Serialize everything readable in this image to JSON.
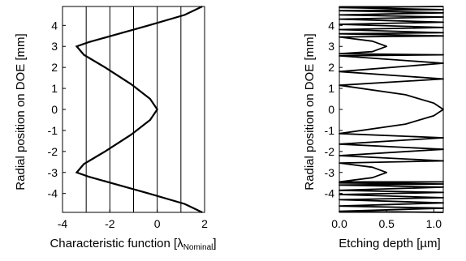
{
  "chart_data": [
    {
      "type": "line",
      "title": "",
      "xlabel": "Characteristic function",
      "xlabel_unit": "λ",
      "xlabel_unit_sub": "Nominal",
      "ylabel": "Radial position on DOE  [mm]",
      "xlim": [
        -4,
        2
      ],
      "ylim": [
        -4.9,
        4.9
      ],
      "xticks": [
        -4,
        -2,
        0,
        2
      ],
      "xtick_labels": [
        "-4",
        "-2",
        "0",
        "2"
      ],
      "yticks": [
        -4,
        -3,
        -2,
        -1,
        0,
        1,
        2,
        3,
        4
      ],
      "ytick_labels": [
        "-4",
        "-3",
        "-2",
        "-1",
        "0",
        "1",
        "2",
        "3",
        "4"
      ],
      "vertical_lines": [
        -3,
        -2,
        -1,
        0,
        1
      ],
      "series": [
        {
          "x": [
            1.9,
            1.16,
            -0.36,
            -1.95,
            -2.9,
            -3.4,
            -3.1,
            -2.2,
            -1.1,
            -0.3,
            0.0,
            -0.3,
            -1.1,
            -2.2,
            -3.1,
            -3.4,
            -2.9,
            -1.95,
            -0.36,
            1.16,
            1.9
          ],
          "y": [
            -4.9,
            -4.5,
            -4.0,
            -3.5,
            -3.2,
            -3.0,
            -2.6,
            -2.0,
            -1.2,
            -0.5,
            0.0,
            0.5,
            1.2,
            2.0,
            2.6,
            3.0,
            3.2,
            3.5,
            4.0,
            4.5,
            4.9
          ]
        }
      ]
    },
    {
      "type": "line",
      "title": "",
      "xlabel": "Etching depth  [µm]",
      "ylabel": "Radial position on DOE  [mm]",
      "xlim": [
        0.0,
        1.1
      ],
      "ylim": [
        -4.9,
        4.9
      ],
      "xticks": [
        0.0,
        0.5,
        1.0
      ],
      "xtick_labels": [
        "0.0",
        "0.5",
        "1.0"
      ],
      "yticks": [
        -4,
        -3,
        -2,
        -1,
        0,
        1,
        2,
        3,
        4
      ],
      "ytick_labels": [
        "-4",
        "-3",
        "-2",
        "-1",
        "0",
        "1",
        "2",
        "3",
        "4"
      ],
      "series": [
        {
          "x": [
            1.1,
            0.0,
            1.1,
            0.0,
            1.1,
            0.0,
            1.1,
            0.0,
            1.1,
            0.0,
            1.1,
            0.0,
            1.1,
            0.0,
            1.1,
            0.0,
            0.35,
            0.5,
            0.35,
            0.0,
            1.1,
            0.0,
            1.1,
            0.0,
            1.1,
            0.0,
            0.7,
            1.0,
            1.1,
            1.0,
            0.7,
            0.0,
            1.1,
            0.0,
            1.1,
            0.0,
            1.1,
            0.0,
            0.35,
            0.5,
            0.35,
            0.0,
            1.1,
            0.0,
            1.1,
            0.0,
            1.1,
            0.0,
            1.1,
            0.0,
            1.1,
            0.0,
            1.1,
            0.0,
            1.1,
            0.0,
            1.1
          ],
          "y": [
            -4.9,
            -4.85,
            -4.7,
            -4.6,
            -4.45,
            -4.3,
            -4.2,
            -4.05,
            -3.95,
            -3.85,
            -3.7,
            -3.6,
            -3.55,
            -3.5,
            -3.45,
            -3.45,
            -3.25,
            -3.0,
            -2.75,
            -2.55,
            -2.45,
            -2.2,
            -1.9,
            -1.65,
            -1.35,
            -1.15,
            -0.7,
            -0.3,
            0.0,
            0.3,
            0.7,
            1.15,
            1.45,
            1.8,
            2.2,
            2.55,
            2.6,
            2.65,
            2.75,
            3.0,
            3.25,
            3.45,
            3.5,
            3.6,
            3.65,
            3.8,
            3.9,
            4.05,
            4.15,
            4.3,
            4.4,
            4.5,
            4.6,
            4.7,
            4.75,
            4.85,
            4.9
          ]
        }
      ]
    }
  ]
}
